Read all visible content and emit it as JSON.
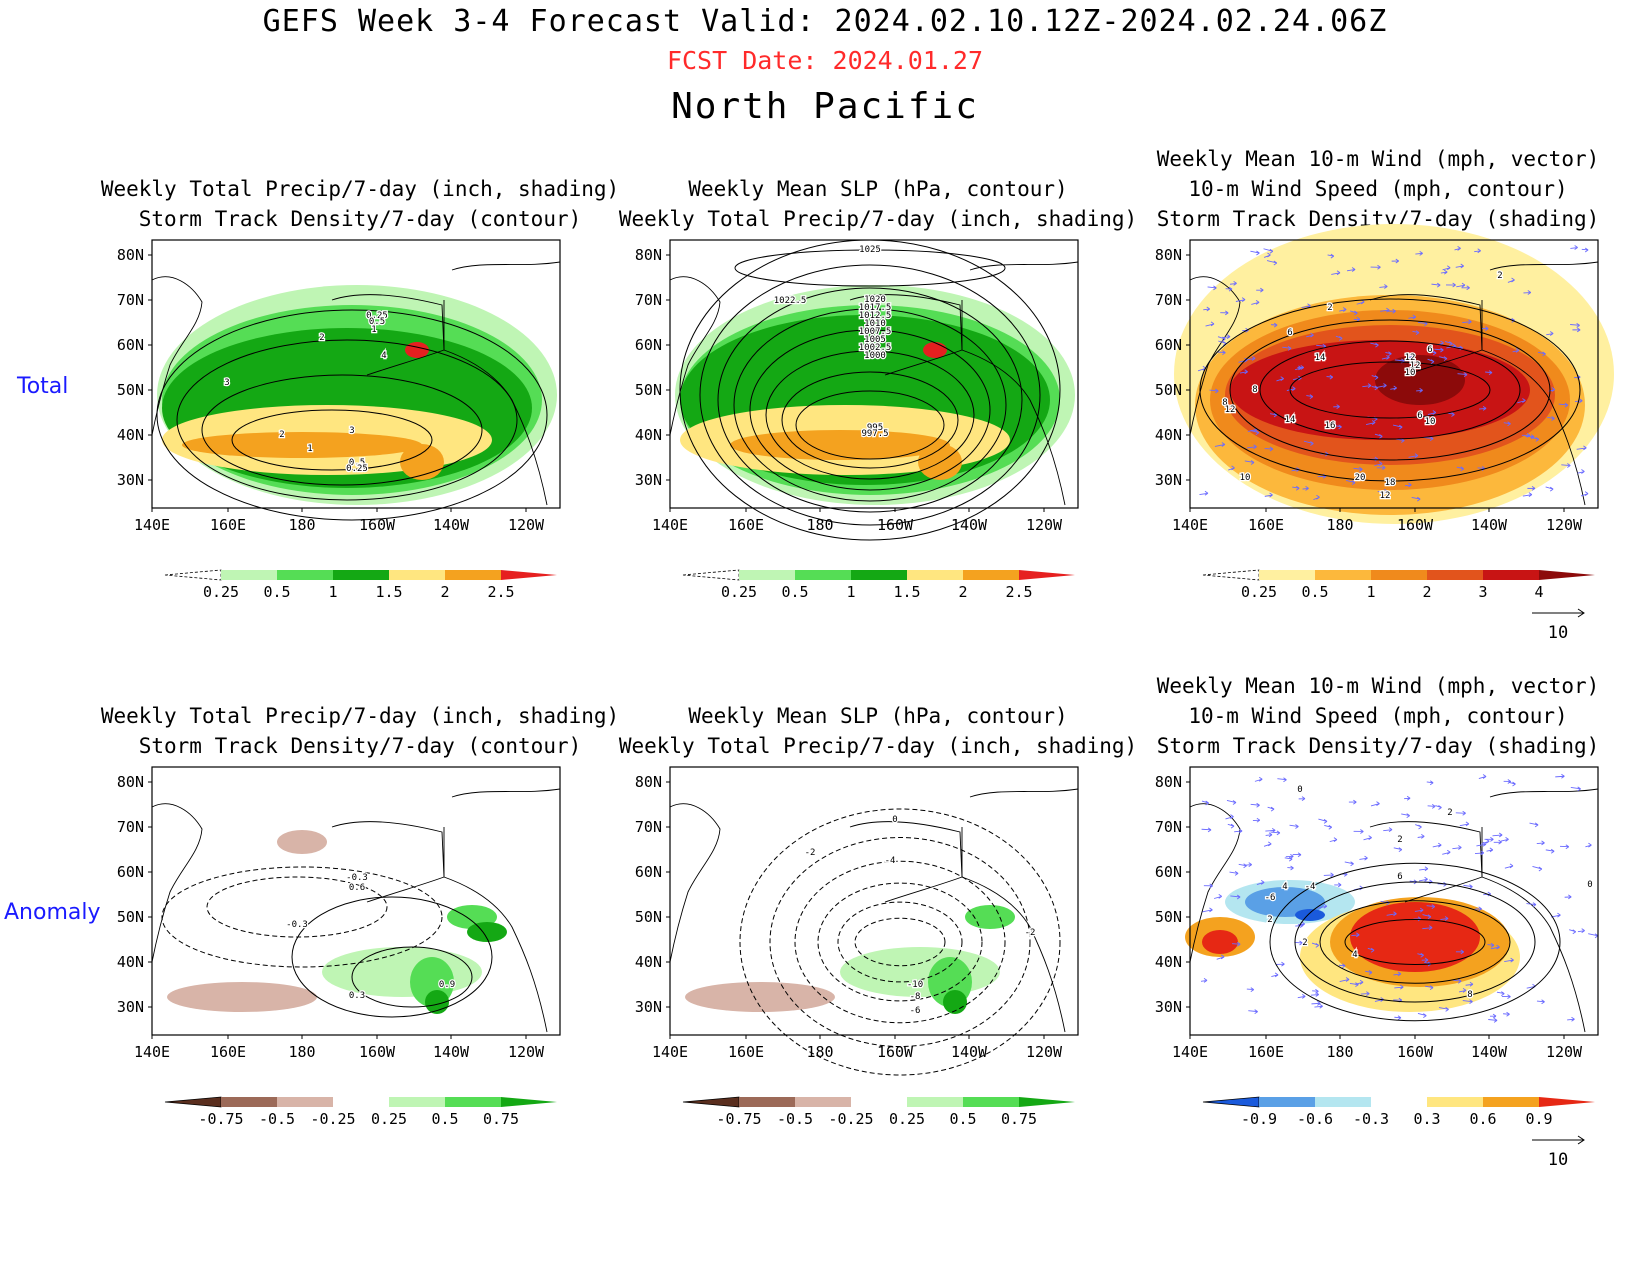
{
  "header": {
    "title": "GEFS Week 3-4 Forecast       Valid: 2024.02.10.12Z-2024.02.24.06Z",
    "fcst_date": "FCST Date: 2024.01.27",
    "region": "North Pacific"
  },
  "rows": [
    {
      "label": "Total"
    },
    {
      "label": "Anomaly"
    }
  ],
  "axes": {
    "lat_ticks": [
      "80N",
      "70N",
      "60N",
      "50N",
      "40N",
      "30N"
    ],
    "lon_ticks": [
      "140E",
      "160E",
      "180",
      "160W",
      "140W",
      "120W"
    ]
  },
  "titles": {
    "precip_storm": [
      "Weekly Total Precip/7-day (inch, shading)",
      "Storm Track Density/7-day (contour)"
    ],
    "slp_precip": [
      "Weekly Mean SLP (hPa, contour)",
      "Weekly Total Precip/7-day (inch, shading)"
    ],
    "wind_storm": [
      "Weekly Mean 10-m Wind (mph, vector)",
      "10-m Wind Speed (mph, contour)",
      "Storm Track Density/7-day (shading)"
    ]
  },
  "colorbars": {
    "precip_total": [
      "0.25",
      "0.5",
      "1",
      "1.5",
      "2",
      "2.5"
    ],
    "storm_total": [
      "0.25",
      "0.5",
      "1",
      "2",
      "3",
      "4"
    ],
    "precip_anom": [
      "-0.75",
      "-0.5",
      "-0.25",
      "0.25",
      "0.5",
      "0.75"
    ],
    "storm_anom": [
      "-0.9",
      "-0.6",
      "-0.3",
      "0.3",
      "0.6",
      "0.9"
    ]
  },
  "colors": {
    "precip_total": [
      "#ffffff",
      "#bff5b4",
      "#55dd55",
      "#14a814",
      "#ffe680",
      "#f4a21f",
      "#e62020"
    ],
    "storm_total": [
      "#ffffff",
      "#fff0a0",
      "#fcb83c",
      "#f08a1c",
      "#e2541c",
      "#c81414",
      "#8c0a0a"
    ],
    "precip_anom": [
      "#5a2e1e",
      "#9c6a58",
      "#d8b4a8",
      "#ffffff",
      "#bff5b4",
      "#55dd55",
      "#14a814"
    ],
    "storm_anom": [
      "#1a5adc",
      "#5aa0e6",
      "#b4e6f0",
      "#ffffff",
      "#ffe680",
      "#f4a21f",
      "#e62814"
    ]
  },
  "vector_legend": "10",
  "contour_labels": {
    "p1": [
      "0.25",
      "0.5",
      "1",
      "2",
      "3",
      "4",
      "2",
      "3",
      "1",
      "0.5",
      "0.25"
    ],
    "p2": [
      "1025",
      "1022.5",
      "1020",
      "1017.5",
      "1012.5",
      "1010",
      "1007.5",
      "1005",
      "1002.5",
      "1000",
      "995",
      "997.5"
    ],
    "p3": [
      "2",
      "2",
      "6",
      "14",
      "12",
      "8",
      "6",
      "8",
      "12",
      "10",
      "12",
      "14",
      "16",
      "6",
      "10",
      "10",
      "20",
      "18",
      "12"
    ],
    "p4": [
      "-0.3",
      "0.6",
      "-0.3",
      "0.9",
      "0.3"
    ],
    "p5": [
      "0",
      "-2",
      "-4",
      "-10",
      "-8",
      "-6",
      "-2"
    ],
    "p6": [
      "0",
      "2",
      "0",
      "2",
      "4",
      "2",
      "2",
      "6",
      "4",
      "8",
      "-6",
      "-4"
    ]
  }
}
